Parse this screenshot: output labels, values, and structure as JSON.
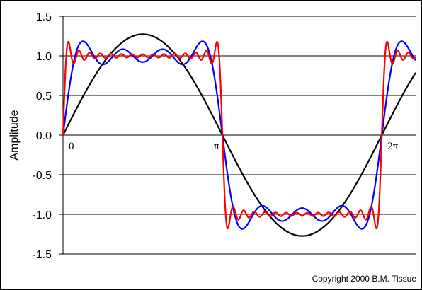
{
  "chart_data": {
    "type": "line",
    "title": "",
    "xlabel": "",
    "ylabel": "Amplitude",
    "ylim": [
      -1.5,
      1.5
    ],
    "y_ticks": [
      "1.5",
      "1.0",
      "0.5",
      "0.0",
      "-0.5",
      "-1.0",
      "-1.5"
    ],
    "y_tick_values": [
      1.5,
      1.0,
      0.5,
      0.0,
      -0.5,
      -1.0,
      -1.5
    ],
    "xlim": [
      0,
      6.95
    ],
    "x_annotations": [
      {
        "text": "0",
        "x": 0
      },
      {
        "text": "π",
        "x": 3.14159
      },
      {
        "text": "2π",
        "x": 6.28319
      }
    ],
    "grid": "horizontal",
    "series": [
      {
        "color": "#000000",
        "harmonics": [
          1
        ]
      },
      {
        "color": "#0000ff",
        "harmonics": [
          1,
          3,
          5,
          7
        ]
      },
      {
        "color": "#ff0000",
        "harmonics": [
          1,
          3,
          5,
          7,
          9,
          11,
          13,
          15,
          17,
          19,
          21,
          23,
          25,
          27,
          29
        ]
      }
    ]
  },
  "footer": {
    "copyright": "Copyright 2000 B.M. Tissue"
  }
}
